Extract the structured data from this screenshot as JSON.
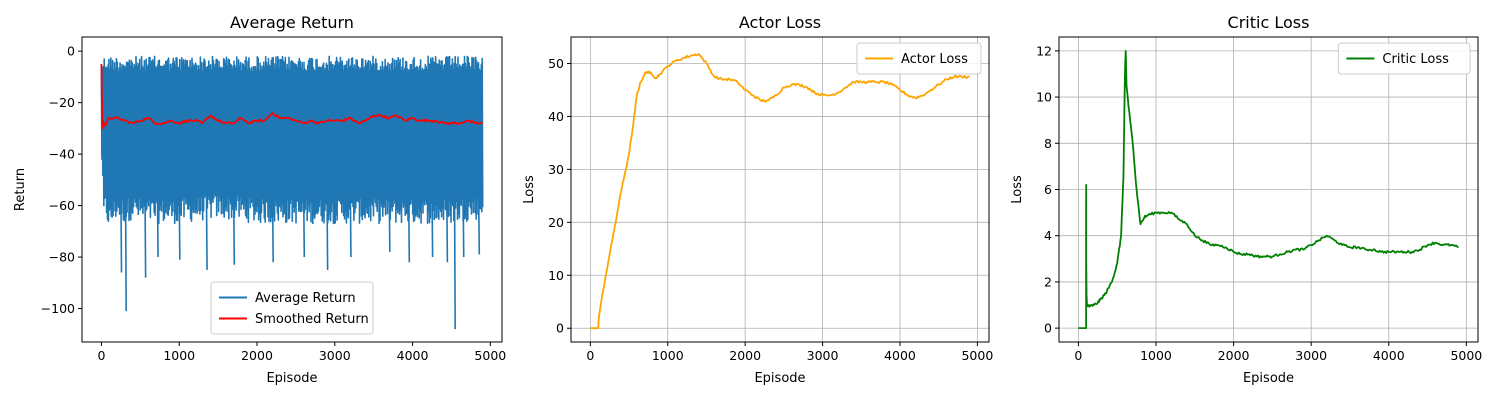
{
  "chart_data": [
    {
      "type": "line",
      "title": "Average Return",
      "xlabel": "Episode",
      "ylabel": "Return",
      "xlim": [
        -250,
        5150
      ],
      "ylim": [
        -113,
        5.5
      ],
      "xticks": [
        0,
        1000,
        2000,
        3000,
        4000,
        5000
      ],
      "yticks": [
        0,
        -20,
        -40,
        -60,
        -80,
        -100
      ],
      "grid": false,
      "legend": "lower-center",
      "series": [
        {
          "name": "Average Return",
          "color": "#1f77b4",
          "kind": "noisy-band",
          "x": [
            0,
            20,
            50,
            100,
            150,
            200,
            300,
            400,
            500,
            700,
            1000,
            1500,
            2000,
            2500,
            3000,
            3500,
            4000,
            4500,
            4900
          ],
          "upper": [
            -3,
            -2,
            -2,
            -2,
            -2,
            -2,
            -2,
            -2,
            -2,
            -2,
            -2,
            -2,
            -2,
            -2,
            -2,
            -2,
            -2,
            -2,
            -2
          ],
          "lower": [
            -40,
            -62,
            -60,
            -65,
            -62,
            -60,
            -62,
            -60,
            -62,
            -62,
            -62,
            -60,
            -62,
            -62,
            -62,
            -62,
            -62,
            -62,
            -60
          ],
          "spikes": [
            {
              "x": 310,
              "y": -101
            },
            {
              "x": 250,
              "y": -86
            },
            {
              "x": 560,
              "y": -88
            },
            {
              "x": 720,
              "y": -80
            },
            {
              "x": 1000,
              "y": -81
            },
            {
              "x": 1350,
              "y": -85
            },
            {
              "x": 1700,
              "y": -83
            },
            {
              "x": 2200,
              "y": -82
            },
            {
              "x": 2600,
              "y": -80
            },
            {
              "x": 2900,
              "y": -85
            },
            {
              "x": 3200,
              "y": -80
            },
            {
              "x": 3700,
              "y": -78
            },
            {
              "x": 3950,
              "y": -82
            },
            {
              "x": 4250,
              "y": -80
            },
            {
              "x": 4440,
              "y": -82
            },
            {
              "x": 4540,
              "y": -108
            },
            {
              "x": 4650,
              "y": -80
            },
            {
              "x": 4850,
              "y": -79
            }
          ]
        },
        {
          "name": "Smoothed Return",
          "color": "#ff0000",
          "x": [
            0,
            10,
            20,
            40,
            60,
            100,
            200,
            300,
            400,
            500,
            600,
            700,
            800,
            900,
            1000,
            1100,
            1200,
            1300,
            1400,
            1500,
            1600,
            1700,
            1800,
            1900,
            2000,
            2100,
            2200,
            2300,
            2400,
            2500,
            2600,
            2700,
            2800,
            2900,
            3000,
            3100,
            3200,
            3300,
            3400,
            3500,
            3600,
            3700,
            3800,
            3900,
            4000,
            4100,
            4200,
            4300,
            4400,
            4500,
            4600,
            4700,
            4800,
            4900
          ],
          "y": [
            -5,
            -30,
            -27,
            -29,
            -28,
            -26,
            -26,
            -27,
            -28,
            -27,
            -26,
            -28,
            -28,
            -27,
            -28,
            -27,
            -27,
            -28,
            -25,
            -27,
            -28,
            -28,
            -26,
            -28,
            -27,
            -27,
            -24,
            -26,
            -26,
            -27,
            -28,
            -27,
            -28,
            -27,
            -27,
            -27,
            -26,
            -28,
            -27,
            -25,
            -25,
            -26,
            -25,
            -27,
            -26,
            -27,
            -27,
            -27,
            -28,
            -28,
            -28,
            -27,
            -28,
            -28
          ]
        }
      ]
    },
    {
      "type": "line",
      "title": "Actor Loss",
      "xlabel": "Episode",
      "ylabel": "Loss",
      "xlim": [
        -250,
        5150
      ],
      "ylim": [
        -2.6,
        55
      ],
      "xticks": [
        0,
        1000,
        2000,
        3000,
        4000,
        5000
      ],
      "yticks": [
        0,
        10,
        20,
        30,
        40,
        50
      ],
      "grid": true,
      "legend": "top-right",
      "series": [
        {
          "name": "Actor Loss",
          "color": "#ffa500",
          "x": [
            0,
            100,
            110,
            130,
            200,
            300,
            400,
            500,
            550,
            600,
            650,
            700,
            750,
            800,
            850,
            900,
            1000,
            1100,
            1200,
            1300,
            1400,
            1500,
            1600,
            1700,
            1800,
            1900,
            2000,
            2100,
            2200,
            2300,
            2400,
            2500,
            2600,
            2700,
            2800,
            2900,
            3000,
            3100,
            3200,
            3300,
            3400,
            3500,
            3600,
            3700,
            3800,
            3900,
            4000,
            4100,
            4200,
            4300,
            4400,
            4500,
            4600,
            4700,
            4800,
            4900
          ],
          "y": [
            0,
            0,
            2,
            4,
            10,
            18,
            26,
            33,
            38,
            44,
            46.5,
            48,
            48.5,
            47.8,
            47.3,
            48,
            49.5,
            50.5,
            51,
            51.5,
            51.8,
            50,
            47.5,
            47,
            47,
            46.5,
            45,
            44,
            43,
            43,
            44,
            45.5,
            46,
            46,
            45.5,
            44.5,
            44,
            44,
            44.5,
            45.5,
            46.5,
            46.5,
            46.5,
            46.5,
            46.5,
            46,
            45,
            44,
            43.5,
            44,
            45,
            46,
            47,
            47.5,
            47.5,
            47.5
          ]
        }
      ]
    },
    {
      "type": "line",
      "title": "Critic Loss",
      "xlabel": "Episode",
      "ylabel": "Loss",
      "xlim": [
        -250,
        5150
      ],
      "ylim": [
        -0.6,
        12.6
      ],
      "xticks": [
        0,
        1000,
        2000,
        3000,
        4000,
        5000
      ],
      "yticks": [
        0,
        2,
        4,
        6,
        8,
        10,
        12
      ],
      "grid": true,
      "legend": "top-right",
      "series": [
        {
          "name": "Critic Loss",
          "color": "#008000",
          "x": [
            0,
            99,
            100,
            101,
            105,
            110,
            120,
            130,
            150,
            200,
            250,
            300,
            350,
            400,
            450,
            500,
            550,
            580,
            600,
            610,
            620,
            650,
            700,
            750,
            800,
            850,
            900,
            1000,
            1100,
            1200,
            1300,
            1400,
            1500,
            1600,
            1700,
            1800,
            1900,
            2000,
            2100,
            2200,
            2300,
            2400,
            2500,
            2600,
            2700,
            2800,
            2900,
            3000,
            3100,
            3200,
            3300,
            3400,
            3500,
            3600,
            3700,
            3800,
            3900,
            4000,
            4100,
            4200,
            4300,
            4400,
            4500,
            4600,
            4700,
            4800,
            4900
          ],
          "y": [
            0,
            0,
            6.2,
            3,
            1.5,
            1,
            1,
            0.95,
            0.95,
            1,
            1.1,
            1.3,
            1.5,
            1.8,
            2.2,
            2.8,
            4,
            6.5,
            11,
            12,
            10.5,
            9.5,
            8,
            6,
            4.5,
            4.8,
            4.9,
            5,
            5,
            5,
            4.7,
            4.5,
            4,
            3.8,
            3.6,
            3.6,
            3.5,
            3.3,
            3.2,
            3.2,
            3.1,
            3.1,
            3.1,
            3.2,
            3.3,
            3.4,
            3.4,
            3.6,
            3.8,
            4,
            3.8,
            3.6,
            3.5,
            3.5,
            3.4,
            3.4,
            3.3,
            3.3,
            3.3,
            3.3,
            3.3,
            3.4,
            3.6,
            3.7,
            3.6,
            3.6,
            3.5
          ]
        }
      ]
    }
  ]
}
